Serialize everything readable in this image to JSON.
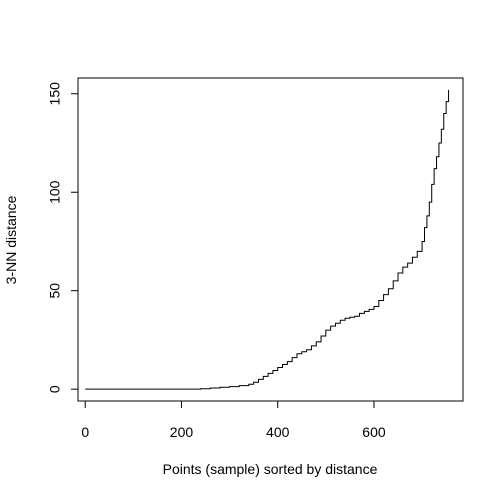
{
  "chart_data": {
    "type": "line",
    "title": "",
    "xlabel": "Points (sample) sorted by distance",
    "ylabel": "3-NN distance",
    "xlim": [
      -15,
      785
    ],
    "ylim": [
      -6,
      158
    ],
    "xticks": [
      0,
      200,
      400,
      600
    ],
    "yticks": [
      0,
      50,
      100,
      150
    ],
    "xtick_labels": [
      "0",
      "200",
      "400",
      "600"
    ],
    "ytick_labels": [
      "0",
      "50",
      "100",
      "150"
    ],
    "grid": false,
    "line_style": "step",
    "line_color": "#000000",
    "series": [
      {
        "x": [
          0,
          50,
          100,
          150,
          200,
          240,
          260,
          280,
          300,
          320,
          340,
          350,
          360,
          370,
          380,
          390,
          400,
          410,
          420,
          430,
          440,
          450,
          460,
          470,
          480,
          490,
          500,
          510,
          520,
          530,
          540,
          550,
          560,
          570,
          580,
          590,
          600,
          610,
          620,
          630,
          640,
          650,
          660,
          670,
          680,
          690,
          700,
          705,
          710,
          715,
          720,
          725,
          730,
          735,
          740,
          745,
          750,
          755
        ],
        "y": [
          0,
          0,
          0,
          0,
          0,
          0.2,
          0.6,
          1,
          1.3,
          1.8,
          2.5,
          3.5,
          5,
          6.5,
          8,
          9.5,
          11,
          12.5,
          14,
          16,
          18,
          19,
          20,
          22,
          24,
          27,
          30,
          32,
          33.5,
          35,
          36,
          36.5,
          37,
          38.5,
          39.5,
          40.5,
          42,
          45,
          48,
          51,
          55,
          59,
          62,
          64,
          67,
          70,
          75,
          82,
          88,
          95,
          104,
          112,
          118,
          125,
          132,
          140,
          146,
          152
        ]
      }
    ]
  }
}
